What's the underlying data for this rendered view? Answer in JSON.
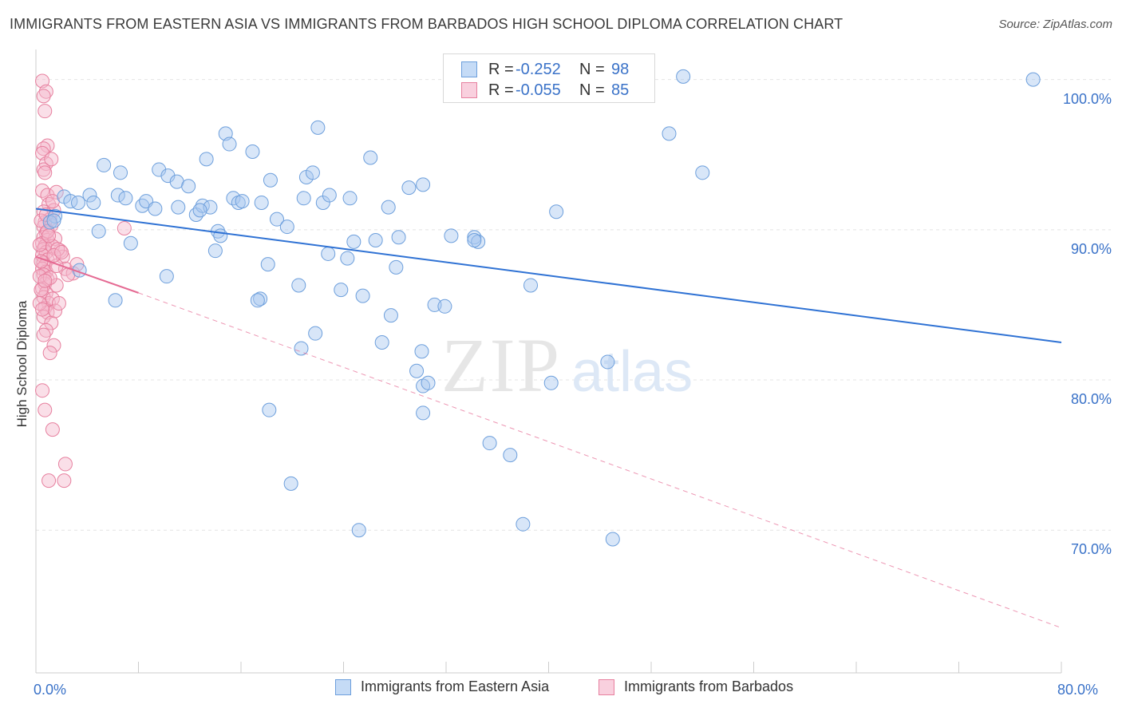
{
  "title": "IMMIGRANTS FROM EASTERN ASIA VS IMMIGRANTS FROM BARBADOS HIGH SCHOOL DIPLOMA CORRELATION CHART",
  "source": "Source: ZipAtlas.com",
  "watermark": {
    "zip": "ZIP",
    "atlas": "atlas"
  },
  "legend_top": [
    {
      "r_label": "R =",
      "r_value": "-0.252",
      "n_label": "N =",
      "n_value": "98",
      "color": "#a8c8f0"
    },
    {
      "r_label": "R =",
      "r_value": "-0.055",
      "n_label": "N =",
      "n_value": "85",
      "color": "#f4b8cc"
    }
  ],
  "x_tick_labels": {
    "min": "0.0%",
    "max": "80.0%"
  },
  "colors": {
    "blue_fill": "#a8c8f0",
    "blue_stroke": "#6d9fdc",
    "blue_line": "#2f72d4",
    "pink_fill": "#f4b8cc",
    "pink_stroke": "#e7809f",
    "pink_line": "#e56a93",
    "accent_text": "#3a72c8",
    "grid": "#e4e4e4"
  },
  "chart_data": {
    "type": "scatter",
    "xlabel": "",
    "ylabel": "High School Diploma",
    "xlim": [
      0,
      80
    ],
    "ylim": [
      60.5,
      102
    ],
    "y_ticks": [
      {
        "value": 100,
        "label": "100.0%"
      },
      {
        "value": 90,
        "label": "90.0%"
      },
      {
        "value": 80,
        "label": "80.0%"
      },
      {
        "value": 70,
        "label": "70.0%"
      }
    ],
    "grid": true,
    "legend_position": "bottom",
    "series": [
      {
        "name": "Immigrants from Eastern Asia",
        "trend": {
          "x": [
            0,
            80
          ],
          "y": [
            91.4,
            82.5
          ],
          "style": "solid"
        },
        "points": [
          [
            1.5,
            90.9
          ],
          [
            1.1,
            90.5
          ],
          [
            1.4,
            90.6
          ],
          [
            2.2,
            92.2
          ],
          [
            2.7,
            91.9
          ],
          [
            3.3,
            91.8
          ],
          [
            4.2,
            92.3
          ],
          [
            4.5,
            91.8
          ],
          [
            5.3,
            94.3
          ],
          [
            6.4,
            92.3
          ],
          [
            6.6,
            93.8
          ],
          [
            7.0,
            92.1
          ],
          [
            8.3,
            91.6
          ],
          [
            8.6,
            91.9
          ],
          [
            9.3,
            91.4
          ],
          [
            9.6,
            94.0
          ],
          [
            10.3,
            93.6
          ],
          [
            11.0,
            93.2
          ],
          [
            11.1,
            91.5
          ],
          [
            11.9,
            92.9
          ],
          [
            12.5,
            91.0
          ],
          [
            13.0,
            91.6
          ],
          [
            13.6,
            91.5
          ],
          [
            13.3,
            94.7
          ],
          [
            14.8,
            96.4
          ],
          [
            15.1,
            95.7
          ],
          [
            15.4,
            92.1
          ],
          [
            15.8,
            91.8
          ],
          [
            16.1,
            91.9
          ],
          [
            16.9,
            95.2
          ],
          [
            17.6,
            91.8
          ],
          [
            18.3,
            93.3
          ],
          [
            18.8,
            90.7
          ],
          [
            19.6,
            90.2
          ],
          [
            20.9,
            92.1
          ],
          [
            21.1,
            93.5
          ],
          [
            21.6,
            93.8
          ],
          [
            22.0,
            96.8
          ],
          [
            22.4,
            91.8
          ],
          [
            22.9,
            92.3
          ],
          [
            24.5,
            92.1
          ],
          [
            26.1,
            94.8
          ],
          [
            27.5,
            91.5
          ],
          [
            29.1,
            92.8
          ],
          [
            30.2,
            93.0
          ],
          [
            34.2,
            89.5
          ],
          [
            40.6,
            91.2
          ],
          [
            49.4,
            96.4
          ],
          [
            52.0,
            93.8
          ],
          [
            77.8,
            100.0
          ],
          [
            40.2,
            100.0
          ],
          [
            50.5,
            100.2
          ],
          [
            42.6,
            101.2
          ],
          [
            4.9,
            89.9
          ],
          [
            7.4,
            89.1
          ],
          [
            10.2,
            86.9
          ],
          [
            14.0,
            88.6
          ],
          [
            14.2,
            89.9
          ],
          [
            17.5,
            85.4
          ],
          [
            18.1,
            87.7
          ],
          [
            20.7,
            82.1
          ],
          [
            21.8,
            83.1
          ],
          [
            22.8,
            88.4
          ],
          [
            23.8,
            86.0
          ],
          [
            24.8,
            89.2
          ],
          [
            25.5,
            85.6
          ],
          [
            26.5,
            89.3
          ],
          [
            27.0,
            82.5
          ],
          [
            27.7,
            84.3
          ],
          [
            28.3,
            89.5
          ],
          [
            28.1,
            87.5
          ],
          [
            29.7,
            80.6
          ],
          [
            30.2,
            79.6
          ],
          [
            30.6,
            79.8
          ],
          [
            30.1,
            81.9
          ],
          [
            31.1,
            85.0
          ],
          [
            31.9,
            84.9
          ],
          [
            32.4,
            89.6
          ],
          [
            34.5,
            89.2
          ],
          [
            35.4,
            75.8
          ],
          [
            37.0,
            75.0
          ],
          [
            38.6,
            86.3
          ],
          [
            40.2,
            79.8
          ],
          [
            44.6,
            81.2
          ],
          [
            14.4,
            89.6
          ],
          [
            18.2,
            78.0
          ],
          [
            19.9,
            73.1
          ],
          [
            25.2,
            70.0
          ],
          [
            30.2,
            77.8
          ],
          [
            38.0,
            70.4
          ],
          [
            45.0,
            69.4
          ],
          [
            6.2,
            85.3
          ],
          [
            3.4,
            87.3
          ],
          [
            17.3,
            85.3
          ],
          [
            34.2,
            89.3
          ],
          [
            24.3,
            88.1
          ],
          [
            20.5,
            86.3
          ],
          [
            12.8,
            91.3
          ]
        ]
      },
      {
        "name": "Immigrants from Barbados",
        "trend": {
          "x": [
            0,
            8
          ],
          "y": [
            88.2,
            85.8
          ],
          "style": "solid",
          "extension": {
            "x": [
              8,
              80
            ],
            "y": [
              85.8,
              63.5
            ],
            "style": "dashed"
          }
        },
        "points": [
          [
            0.5,
            99.9
          ],
          [
            0.8,
            99.2
          ],
          [
            0.6,
            98.9
          ],
          [
            0.7,
            97.9
          ],
          [
            0.9,
            95.6
          ],
          [
            0.6,
            95.4
          ],
          [
            0.5,
            95.1
          ],
          [
            0.8,
            94.4
          ],
          [
            0.6,
            94.0
          ],
          [
            0.7,
            93.8
          ],
          [
            0.5,
            92.6
          ],
          [
            0.9,
            92.3
          ],
          [
            1.0,
            91.7
          ],
          [
            0.6,
            91.2
          ],
          [
            1.1,
            90.7
          ],
          [
            0.7,
            90.5
          ],
          [
            0.6,
            90.2
          ],
          [
            0.8,
            89.8
          ],
          [
            0.6,
            89.5
          ],
          [
            0.9,
            89.3
          ],
          [
            0.5,
            89.1
          ],
          [
            0.7,
            88.9
          ],
          [
            0.6,
            88.7
          ],
          [
            0.8,
            88.5
          ],
          [
            0.5,
            88.3
          ],
          [
            0.9,
            88.0
          ],
          [
            0.6,
            87.8
          ],
          [
            0.7,
            87.6
          ],
          [
            0.5,
            87.4
          ],
          [
            0.8,
            87.2
          ],
          [
            0.6,
            87.0
          ],
          [
            0.9,
            86.7
          ],
          [
            0.7,
            86.4
          ],
          [
            0.5,
            86.1
          ],
          [
            0.8,
            85.8
          ],
          [
            0.6,
            85.5
          ],
          [
            1.0,
            85.1
          ],
          [
            0.7,
            84.8
          ],
          [
            0.9,
            84.5
          ],
          [
            0.6,
            84.2
          ],
          [
            1.2,
            83.8
          ],
          [
            0.8,
            83.3
          ],
          [
            1.4,
            82.3
          ],
          [
            1.1,
            81.8
          ],
          [
            0.5,
            79.3
          ],
          [
            0.7,
            78.0
          ],
          [
            1.3,
            76.7
          ],
          [
            2.3,
            74.4
          ],
          [
            1.0,
            73.3
          ],
          [
            2.2,
            73.3
          ],
          [
            6.9,
            90.1
          ],
          [
            1.5,
            89.4
          ],
          [
            1.9,
            88.6
          ],
          [
            2.1,
            88.2
          ],
          [
            2.3,
            87.4
          ],
          [
            2.9,
            87.1
          ],
          [
            3.2,
            87.7
          ],
          [
            2.5,
            87.0
          ],
          [
            1.6,
            86.3
          ],
          [
            1.3,
            85.4
          ],
          [
            1.5,
            84.6
          ],
          [
            0.4,
            90.6
          ],
          [
            0.3,
            89.0
          ],
          [
            0.4,
            87.9
          ],
          [
            0.3,
            86.9
          ],
          [
            0.4,
            86.0
          ],
          [
            0.3,
            85.1
          ],
          [
            1.2,
            90.3
          ],
          [
            1.4,
            91.3
          ],
          [
            1.3,
            88.9
          ],
          [
            1.6,
            87.6
          ],
          [
            1.8,
            85.1
          ],
          [
            1.1,
            86.8
          ],
          [
            0.9,
            89.9
          ],
          [
            1.7,
            88.7
          ],
          [
            0.5,
            84.7
          ],
          [
            0.6,
            83.0
          ],
          [
            1.2,
            94.7
          ],
          [
            1.6,
            92.5
          ],
          [
            0.8,
            91.0
          ],
          [
            1.0,
            89.6
          ],
          [
            1.4,
            88.3
          ],
          [
            0.7,
            86.6
          ],
          [
            1.3,
            91.9
          ],
          [
            2.0,
            88.5
          ]
        ]
      }
    ]
  }
}
